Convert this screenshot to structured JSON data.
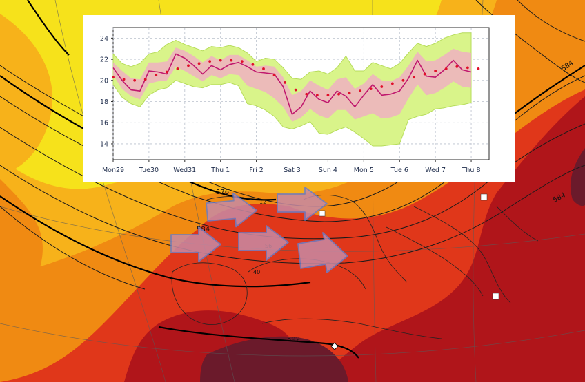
{
  "map": {
    "contour_labels": [
      "576",
      "584",
      "584",
      "584",
      "592",
      "12",
      "40",
      "S6"
    ],
    "colors": {
      "yellow": "#f6e21b",
      "light_orange": "#f7b21a",
      "orange": "#f08a12",
      "red": "#e0371a",
      "dark_red": "#b0151a",
      "maroon": "#6b1a2b",
      "arrow_fill": "#c88aa4",
      "arrow_stroke": "#6a7ec8"
    }
  },
  "chart_data": {
    "type": "line",
    "title": "",
    "xlabel": "",
    "ylabel": "",
    "x_tick_labels": [
      "Mon29",
      "Tue30",
      "Wed31",
      "Thu 1",
      "Fri 2",
      "Sat 3",
      "Sun 4",
      "Mon 5",
      "Tue 6",
      "Wed 7",
      "Thu 8"
    ],
    "highlight_tick": "Sun 4",
    "y_ticks": [
      14,
      16,
      18,
      20,
      22,
      24
    ],
    "ylim": [
      12.5,
      25
    ],
    "xlim": [
      0,
      10.5
    ],
    "grid": true,
    "band_color": "#d9f48a",
    "inner_band_color": "#f2a8c8",
    "series": [
      {
        "role": "main",
        "color": "#c0186e",
        "x": [
          0,
          0.25,
          0.5,
          0.75,
          1,
          1.25,
          1.5,
          1.75,
          2,
          2.25,
          2.5,
          2.75,
          3,
          3.25,
          3.5,
          3.75,
          4,
          4.25,
          4.5,
          4.75,
          5,
          5.25,
          5.5,
          5.75,
          6,
          6.25,
          6.5,
          6.75,
          7,
          7.25,
          7.5,
          7.75,
          8,
          8.25,
          8.5,
          8.75,
          9,
          9.25,
          9.5,
          9.75,
          10
        ],
        "values": [
          21.2,
          20.0,
          19.1,
          19.0,
          20.9,
          20.8,
          20.6,
          22.5,
          22.1,
          21.4,
          20.6,
          21.4,
          21.0,
          21.5,
          21.7,
          21.3,
          20.8,
          20.7,
          20.6,
          19.4,
          16.8,
          17.5,
          19.0,
          18.2,
          17.9,
          19.0,
          18.5,
          17.5,
          18.6,
          19.6,
          18.6,
          18.7,
          19.0,
          20.2,
          21.9,
          20.4,
          20.3,
          21.0,
          21.9,
          21.0,
          20.8
        ]
      },
      {
        "role": "mean",
        "color": "#e0102a",
        "x": [
          0,
          0.3,
          0.6,
          0.9,
          1.2,
          1.5,
          1.8,
          2.1,
          2.4,
          2.7,
          3.0,
          3.3,
          3.6,
          3.9,
          4.2,
          4.5,
          4.8,
          5.1,
          5.4,
          5.7,
          6.0,
          6.3,
          6.6,
          6.9,
          7.2,
          7.5,
          7.8,
          8.1,
          8.4,
          8.7,
          9.0,
          9.3,
          9.6,
          9.9,
          10.2
        ],
        "values": [
          20.3,
          20.1,
          20.0,
          20.1,
          20.5,
          20.8,
          21.1,
          21.4,
          21.6,
          21.8,
          21.9,
          21.9,
          21.8,
          21.5,
          21.1,
          20.5,
          19.8,
          19.1,
          18.7,
          18.6,
          18.6,
          18.7,
          18.8,
          19.0,
          19.2,
          19.4,
          19.7,
          20.0,
          20.3,
          20.6,
          20.9,
          21.1,
          21.3,
          21.2,
          21.1
        ]
      }
    ],
    "band_outer_upper": [
      22.5,
      21.6,
      21.3,
      21.6,
      22.5,
      22.7,
      23.4,
      23.8,
      23.4,
      23.1,
      22.8,
      23.2,
      23.1,
      23.3,
      23.1,
      22.6,
      21.8,
      22.1,
      22.0,
      21.2,
      20.2,
      20.1,
      20.8,
      20.9,
      20.6,
      21.2,
      22.3,
      20.9,
      20.9,
      21.7,
      21.4,
      21.1,
      21.6,
      22.6,
      23.5,
      23.2,
      23.5,
      24.0,
      24.3,
      24.5,
      24.5
    ],
    "band_outer_lower": [
      19.6,
      18.4,
      17.8,
      17.5,
      18.6,
      19.1,
      19.3,
      20.0,
      19.7,
      19.4,
      19.3,
      19.6,
      19.6,
      19.8,
      19.5,
      17.8,
      17.6,
      17.2,
      16.6,
      15.6,
      15.4,
      15.7,
      16.1,
      15.0,
      14.9,
      15.3,
      15.6,
      15.1,
      14.5,
      13.8,
      13.8,
      13.9,
      14.0,
      16.3,
      16.6,
      16.8,
      17.3,
      17.4,
      17.6,
      17.7,
      17.9
    ],
    "band_inner_upper": [
      21.7,
      20.9,
      20.2,
      20.1,
      21.7,
      21.7,
      21.8,
      23.1,
      22.8,
      22.3,
      21.7,
      22.3,
      21.9,
      22.4,
      22.4,
      21.9,
      21.3,
      21.4,
      21.3,
      20.3,
      18.6,
      19.0,
      20.0,
      19.5,
      19.1,
      20.1,
      20.3,
      19.2,
      19.7,
      20.6,
      20.0,
      19.9,
      20.3,
      21.4,
      22.7,
      21.8,
      21.9,
      22.4,
      23.0,
      22.7,
      22.6
    ],
    "band_inner_lower": [
      20.5,
      19.2,
      18.5,
      18.2,
      19.7,
      19.9,
      20.0,
      21.3,
      20.9,
      20.4,
      19.9,
      20.5,
      20.2,
      20.6,
      20.5,
      19.5,
      19.2,
      18.9,
      18.3,
      17.5,
      16.1,
      16.5,
      17.3,
      16.7,
      16.4,
      17.2,
      17.2,
      16.3,
      16.6,
      16.9,
      16.4,
      16.5,
      16.8,
      18.3,
      19.6,
      18.6,
      18.8,
      19.3,
      19.9,
      19.4,
      19.3
    ]
  }
}
